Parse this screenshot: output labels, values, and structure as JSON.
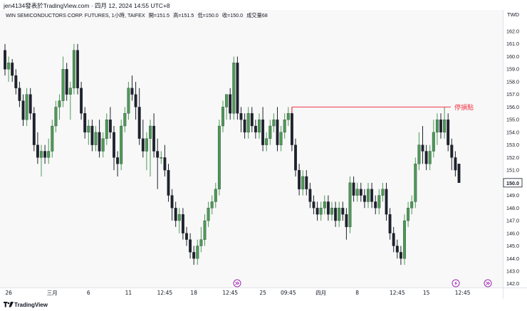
{
  "header": {
    "published": "jen4134發表於TradingView.com · 四月 12, 2024 14:55 UTC+8"
  },
  "legend": {
    "symbol": "WIN SEMICONDUCTORS CORP. FUTURES, 1小時, TAIFEX",
    "open": "開=151.5",
    "high": "高=151.5",
    "low": "低=150.0",
    "close": "收=150.0",
    "volume": "成交量68"
  },
  "price_axis": {
    "currency": "TWD",
    "current_price_label": "150.0"
  },
  "annotation": {
    "label": "停損點",
    "price": 156.0,
    "color": "#f23645"
  },
  "event_markers": [
    {
      "name": "dividend-event-icon",
      "x_label_index": 1
    },
    {
      "name": "lightning-event-icon",
      "x_label_index": 2
    },
    {
      "name": "dividend-event-icon-future",
      "x_label_index": 3
    }
  ],
  "footer": {
    "brand": "TradingView"
  },
  "colors": {
    "up": "#4c9a55",
    "down": "#1e222d",
    "annotation": "#f23645",
    "event": "#9c27b0"
  },
  "chart_data": {
    "type": "candlestick",
    "title": "",
    "ylim": [
      142.0,
      162.6
    ],
    "y_ticks": [
      142.0,
      143.0,
      144.0,
      145.0,
      146.0,
      147.0,
      148.0,
      149.0,
      150.0,
      151.0,
      152.0,
      153.0,
      154.0,
      155.0,
      156.0,
      157.0,
      158.0,
      159.0,
      160.0,
      161.0,
      162.0
    ],
    "y_tick_labels": [
      "142.0",
      "143.0",
      "144.0",
      "145.0",
      "146.0",
      "147.0",
      "148.0",
      "149.0",
      "150.0",
      "151.0",
      "152.0",
      "153.0",
      "154.0",
      "155.0",
      "156.0",
      "157.0",
      "158.0",
      "159.0",
      "160.0",
      "161.0",
      "162.0"
    ],
    "x_tick_labels": [
      "26",
      "三月",
      "6",
      "11",
      "12:45",
      "18",
      "12:45",
      "25",
      "09:45",
      "四月",
      "8",
      "12:45",
      "15",
      "12:45"
    ],
    "x_tick_bar_index": [
      1,
      13,
      23,
      34,
      44,
      52,
      62,
      71,
      78,
      87,
      97,
      108,
      116,
      126
    ],
    "candles": [
      [
        160.5,
        161.0,
        158.5,
        159.0
      ],
      [
        159.0,
        160.0,
        158.0,
        159.5
      ],
      [
        159.5,
        159.8,
        158.0,
        158.5
      ],
      [
        158.5,
        159.0,
        157.0,
        157.5
      ],
      [
        157.5,
        158.0,
        156.0,
        156.5
      ],
      [
        156.5,
        157.0,
        154.5,
        155.0
      ],
      [
        155.0,
        157.5,
        154.5,
        157.0
      ],
      [
        157.0,
        157.5,
        155.0,
        155.5
      ],
      [
        155.5,
        156.0,
        152.5,
        153.0
      ],
      [
        153.0,
        154.0,
        151.5,
        152.0
      ],
      [
        152.0,
        153.0,
        150.5,
        152.5
      ],
      [
        152.5,
        153.0,
        151.5,
        152.0
      ],
      [
        152.0,
        153.5,
        151.5,
        152.5
      ],
      [
        152.5,
        155.0,
        152.0,
        154.5
      ],
      [
        154.5,
        156.5,
        154.0,
        156.0
      ],
      [
        156.0,
        157.0,
        155.0,
        156.5
      ],
      [
        156.5,
        160.0,
        156.0,
        159.0
      ],
      [
        159.0,
        159.5,
        156.5,
        157.0
      ],
      [
        157.0,
        158.0,
        155.0,
        157.5
      ],
      [
        157.5,
        161.0,
        157.0,
        160.5
      ],
      [
        160.5,
        161.0,
        157.0,
        157.5
      ],
      [
        157.5,
        158.0,
        155.0,
        155.5
      ],
      [
        155.5,
        156.0,
        153.5,
        154.0
      ],
      [
        154.0,
        155.0,
        153.0,
        154.5
      ],
      [
        154.5,
        155.0,
        152.5,
        153.0
      ],
      [
        153.0,
        154.5,
        152.5,
        154.0
      ],
      [
        154.0,
        155.0,
        152.0,
        152.5
      ],
      [
        152.5,
        154.0,
        152.0,
        153.5
      ],
      [
        153.5,
        155.5,
        153.0,
        155.0
      ],
      [
        155.0,
        156.0,
        153.5,
        154.0
      ],
      [
        154.0,
        154.5,
        151.0,
        152.0
      ],
      [
        152.0,
        152.5,
        150.5,
        151.5
      ],
      [
        151.5,
        155.0,
        151.0,
        154.5
      ],
      [
        154.5,
        156.0,
        154.0,
        155.5
      ],
      [
        155.5,
        158.0,
        155.0,
        157.5
      ],
      [
        157.5,
        158.5,
        156.5,
        157.0
      ],
      [
        157.0,
        158.0,
        155.0,
        156.0
      ],
      [
        156.0,
        157.5,
        153.0,
        153.5
      ],
      [
        153.5,
        155.0,
        152.0,
        152.5
      ],
      [
        152.5,
        154.0,
        151.0,
        153.5
      ],
      [
        153.5,
        155.0,
        150.5,
        154.5
      ],
      [
        154.5,
        155.5,
        152.0,
        152.5
      ],
      [
        152.5,
        153.5,
        149.5,
        152.0
      ],
      [
        152.0,
        152.5,
        151.5,
        152.0
      ],
      [
        152.0,
        153.0,
        150.5,
        151.0
      ],
      [
        151.0,
        151.5,
        148.5,
        149.0
      ],
      [
        149.0,
        149.5,
        147.0,
        148.0
      ],
      [
        148.0,
        148.5,
        146.5,
        147.0
      ],
      [
        147.0,
        148.0,
        146.0,
        147.5
      ],
      [
        147.5,
        148.0,
        145.5,
        146.0
      ],
      [
        146.0,
        146.5,
        145.0,
        145.5
      ],
      [
        145.5,
        146.0,
        144.0,
        144.5
      ],
      [
        144.5,
        145.0,
        143.5,
        144.0
      ],
      [
        144.0,
        145.5,
        143.5,
        145.0
      ],
      [
        145.0,
        146.5,
        144.5,
        145.5
      ],
      [
        145.5,
        147.5,
        145.0,
        147.0
      ],
      [
        147.0,
        148.5,
        146.5,
        148.0
      ],
      [
        148.0,
        149.0,
        147.5,
        148.5
      ],
      [
        148.5,
        150.0,
        148.0,
        149.5
      ],
      [
        149.5,
        155.0,
        149.0,
        154.5
      ],
      [
        154.5,
        156.5,
        154.0,
        156.0
      ],
      [
        156.0,
        157.0,
        155.0,
        157.0
      ],
      [
        157.0,
        157.5,
        155.0,
        155.5
      ],
      [
        155.5,
        160.0,
        155.0,
        159.5
      ],
      [
        159.5,
        160.0,
        155.0,
        155.5
      ],
      [
        155.5,
        156.0,
        154.0,
        155.0
      ],
      [
        155.0,
        155.5,
        153.5,
        154.0
      ],
      [
        154.0,
        156.0,
        153.5,
        155.5
      ],
      [
        155.5,
        156.0,
        154.0,
        154.5
      ],
      [
        154.5,
        155.0,
        153.5,
        154.0
      ],
      [
        154.0,
        155.5,
        153.5,
        155.0
      ],
      [
        155.0,
        156.0,
        152.5,
        153.0
      ],
      [
        153.0,
        154.0,
        152.5,
        153.5
      ],
      [
        153.5,
        155.0,
        153.0,
        154.5
      ],
      [
        154.5,
        155.5,
        154.0,
        155.0
      ],
      [
        155.0,
        156.0,
        152.5,
        153.0
      ],
      [
        153.0,
        154.5,
        152.5,
        154.0
      ],
      [
        154.0,
        155.5,
        153.5,
        155.0
      ],
      [
        155.0,
        156.0,
        154.5,
        155.5
      ],
      [
        155.5,
        156.0,
        152.5,
        153.0
      ],
      [
        153.0,
        153.5,
        150.5,
        151.0
      ],
      [
        151.0,
        151.5,
        149.0,
        149.5
      ],
      [
        149.5,
        151.0,
        149.0,
        150.5
      ],
      [
        150.5,
        151.0,
        149.0,
        149.5
      ],
      [
        149.5,
        150.0,
        148.0,
        148.5
      ],
      [
        148.5,
        149.0,
        147.5,
        148.0
      ],
      [
        148.0,
        148.5,
        147.0,
        147.5
      ],
      [
        147.5,
        148.5,
        147.0,
        148.0
      ],
      [
        148.0,
        149.0,
        147.5,
        148.5
      ],
      [
        148.5,
        149.0,
        147.0,
        147.5
      ],
      [
        147.5,
        148.5,
        147.0,
        148.0
      ],
      [
        148.0,
        148.5,
        146.5,
        147.0
      ],
      [
        147.0,
        148.5,
        146.5,
        148.0
      ],
      [
        148.0,
        148.5,
        147.0,
        147.5
      ],
      [
        147.5,
        148.0,
        145.5,
        146.5
      ],
      [
        146.5,
        150.5,
        146.0,
        150.0
      ],
      [
        150.0,
        150.5,
        148.5,
        149.0
      ],
      [
        149.0,
        150.0,
        148.5,
        149.5
      ],
      [
        149.5,
        150.0,
        148.5,
        149.0
      ],
      [
        149.0,
        149.5,
        148.0,
        148.5
      ],
      [
        148.5,
        150.0,
        148.0,
        149.5
      ],
      [
        149.5,
        150.0,
        148.0,
        148.5
      ],
      [
        148.5,
        149.0,
        147.5,
        148.0
      ],
      [
        148.0,
        149.5,
        147.5,
        149.0
      ],
      [
        149.0,
        150.0,
        148.5,
        149.5
      ],
      [
        149.5,
        150.0,
        147.0,
        147.5
      ],
      [
        147.5,
        148.0,
        145.5,
        146.0
      ],
      [
        146.0,
        146.5,
        144.5,
        145.0
      ],
      [
        145.0,
        145.5,
        144.0,
        144.5
      ],
      [
        144.5,
        145.0,
        143.5,
        144.0
      ],
      [
        144.0,
        147.5,
        143.5,
        147.0
      ],
      [
        147.0,
        148.5,
        146.5,
        148.0
      ],
      [
        148.0,
        149.0,
        147.5,
        148.5
      ],
      [
        148.5,
        152.0,
        148.0,
        151.5
      ],
      [
        151.5,
        154.0,
        151.0,
        153.0
      ],
      [
        153.0,
        154.5,
        151.5,
        152.5
      ],
      [
        152.5,
        153.0,
        151.0,
        151.5
      ],
      [
        151.5,
        153.0,
        151.0,
        152.5
      ],
      [
        152.5,
        155.0,
        152.0,
        154.0
      ],
      [
        154.0,
        155.5,
        153.0,
        155.0
      ],
      [
        155.0,
        155.5,
        153.5,
        154.0
      ],
      [
        154.0,
        156.0,
        153.5,
        155.0
      ],
      [
        155.0,
        155.5,
        152.5,
        153.0
      ],
      [
        153.0,
        153.5,
        151.0,
        152.0
      ],
      [
        152.0,
        152.5,
        150.5,
        151.0
      ],
      [
        151.5,
        151.5,
        150.0,
        150.0
      ]
    ],
    "grid": false,
    "legend_position": "top-left"
  }
}
